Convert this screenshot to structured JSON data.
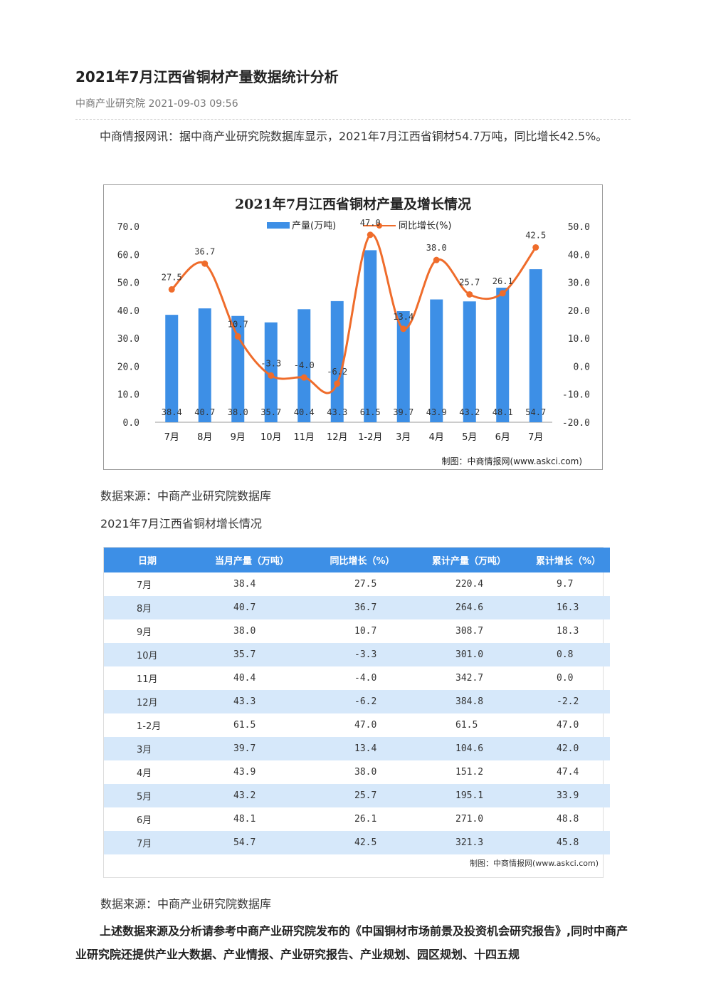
{
  "article": {
    "title": "2021年7月江西省铜材产量数据统计分析",
    "meta": "中商产业研究院 2021-09-03 09:56",
    "intro": "中商情报网讯：据中商产业研究院数据库显示，2021年7月江西省铜材54.7万吨，同比增长42.5%。",
    "source_1": "数据来源：中商产业研究院数据库",
    "table_caption": "2021年7月江西省铜材增长情况",
    "source_2": "数据来源：中商产业研究院数据库",
    "closing": "上述数据来源及分析请参考中商产业研究院发布的《中国铜材市场前景及投资机会研究报告》,同时中商产业研究院还提供产业大数据、产业情报、产业研究报告、产业规划、园区规划、十四五规"
  },
  "chart_data": {
    "type": "bar+line",
    "title": "2021年7月江西省铜材产量及增长情况",
    "categories": [
      "7月",
      "8月",
      "9月",
      "10月",
      "11月",
      "12月",
      "1-2月",
      "3月",
      "4月",
      "5月",
      "6月",
      "7月"
    ],
    "series": [
      {
        "name": "产量(万吨)",
        "type": "bar",
        "axis": "left",
        "values": [
          38.4,
          40.7,
          38.0,
          35.7,
          40.4,
          43.3,
          61.5,
          39.7,
          43.9,
          43.2,
          48.1,
          54.7
        ],
        "color": "#3d8fe6"
      },
      {
        "name": "同比增长(%)",
        "type": "line",
        "axis": "right",
        "values": [
          27.5,
          36.7,
          10.7,
          -3.3,
          -4.0,
          -6.2,
          47.0,
          13.4,
          38.0,
          25.7,
          26.1,
          42.5
        ],
        "color": "#ef6c2b"
      }
    ],
    "left_axis": {
      "min": 0,
      "max": 70,
      "ticks": [
        "0.0",
        "10.0",
        "20.0",
        "30.0",
        "40.0",
        "50.0",
        "60.0",
        "70.0"
      ]
    },
    "right_axis": {
      "min": -20,
      "max": 50,
      "ticks": [
        "-20.0",
        "-10.0",
        "0.0",
        "10.0",
        "20.0",
        "30.0",
        "40.0",
        "50.0"
      ]
    },
    "legend_position": "top",
    "credit": "制图：中商情报网(www.askci.com)"
  },
  "table": {
    "headers": [
      "日期",
      "当月产量（万吨）",
      "同比增长（%）",
      "累计产量（万吨）",
      "累计增长（%）"
    ],
    "rows": [
      [
        "7月",
        "38.4",
        "27.5",
        "220.4",
        "9.7"
      ],
      [
        "8月",
        "40.7",
        "36.7",
        "264.6",
        "16.3"
      ],
      [
        "9月",
        "38.0",
        "10.7",
        "308.7",
        "18.3"
      ],
      [
        "10月",
        "35.7",
        "-3.3",
        "301.0",
        "0.8"
      ],
      [
        "11月",
        "40.4",
        "-4.0",
        "342.7",
        "0.0"
      ],
      [
        "12月",
        "43.3",
        "-6.2",
        "384.8",
        "-2.2"
      ],
      [
        "1-2月",
        "61.5",
        "47.0",
        "61.5",
        "47.0"
      ],
      [
        "3月",
        "39.7",
        "13.4",
        "104.6",
        "42.0"
      ],
      [
        "4月",
        "43.9",
        "38.0",
        "151.2",
        "47.4"
      ],
      [
        "5月",
        "43.2",
        "25.7",
        "195.1",
        "33.9"
      ],
      [
        "6月",
        "48.1",
        "26.1",
        "271.0",
        "48.8"
      ],
      [
        "7月",
        "54.7",
        "42.5",
        "321.3",
        "45.8"
      ]
    ],
    "credit": "制图：中商情报网(www.askci.com)"
  }
}
